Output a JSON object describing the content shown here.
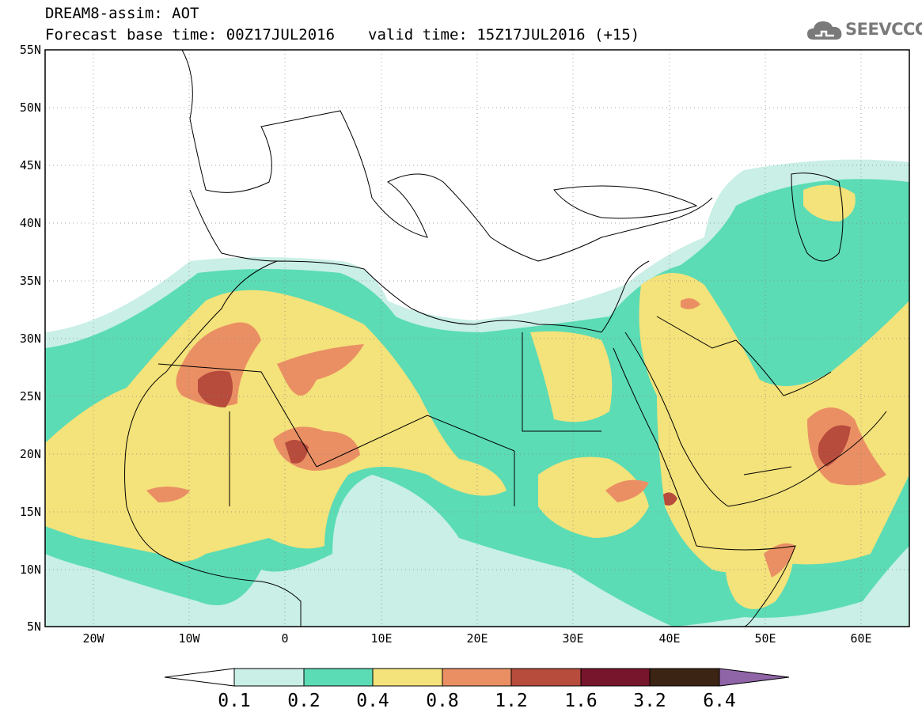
{
  "header": {
    "title": "DREAM8-assim: AOT",
    "base_time": "Forecast base time: 00Z17JUL2016",
    "valid_time": "valid time: 15Z17JUL2016 (+15)"
  },
  "logo": {
    "text": "SEEVCCC",
    "icon": "cloud-icon"
  },
  "map": {
    "lon_range": [
      -25,
      65
    ],
    "lat_range": [
      5,
      55
    ],
    "lat_ticks": [
      "55N",
      "50N",
      "45N",
      "40N",
      "35N",
      "30N",
      "25N",
      "20N",
      "15N",
      "10N",
      "5N"
    ],
    "lon_ticks": [
      "20W",
      "10W",
      "0",
      "10E",
      "20E",
      "30E",
      "40E",
      "50E",
      "60E"
    ],
    "grid": "dotted"
  },
  "colorbar": {
    "levels": [
      "0.1",
      "0.2",
      "0.4",
      "0.8",
      "1.2",
      "1.6",
      "3.2",
      "6.4"
    ],
    "colors": {
      "below": "#ffffff",
      "c1": "#c9efe6",
      "c2": "#5bdcb5",
      "c3": "#f4e27a",
      "c4": "#ea8f64",
      "c5": "#b74b3c",
      "c6": "#76152b",
      "c7": "#3b2413",
      "above": "#8f65a8"
    }
  }
}
